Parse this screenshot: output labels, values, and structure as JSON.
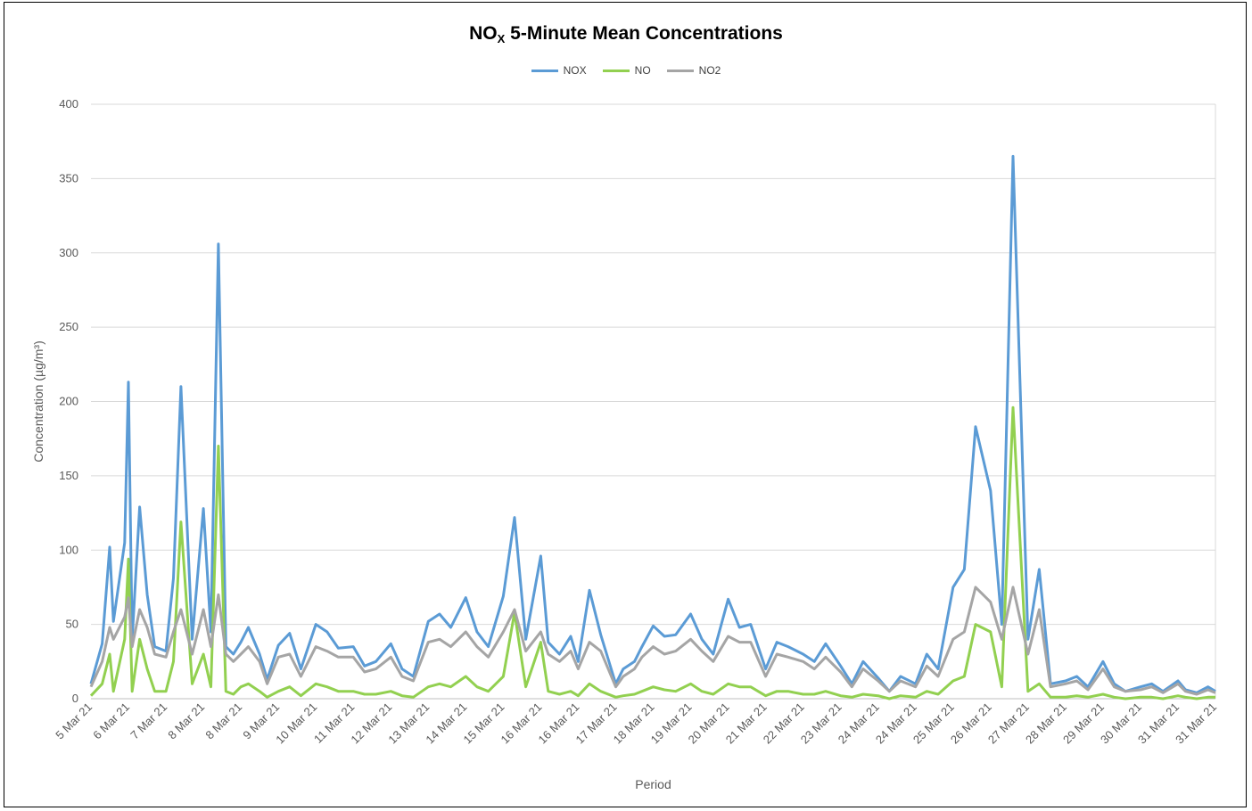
{
  "chart_data": {
    "type": "line",
    "title_main": "NO",
    "title_sub": "X",
    "title_rest": " 5-Minute Mean Concentrations",
    "xlabel": "Period",
    "ylabel": "Concentration (µg/m³)",
    "ylim": [
      0,
      400
    ],
    "yticks": [
      0,
      50,
      100,
      150,
      200,
      250,
      300,
      350,
      400
    ],
    "grid": true,
    "legend_position": "top-center",
    "x_tick_labels": [
      "5 Mar 21",
      "6 Mar 21",
      "7 Mar 21",
      "8 Mar 21",
      "8 Mar 21",
      "9 Mar 21",
      "10 Mar 21",
      "11 Mar 21",
      "12 Mar 21",
      "13 Mar 21",
      "14 Mar 21",
      "15 Mar 21",
      "16 Mar 21",
      "16 Mar 21",
      "17 Mar 21",
      "18 Mar 21",
      "19 Mar 21",
      "20 Mar 21",
      "21 Mar 21",
      "22 Mar 21",
      "23 Mar 21",
      "24 Mar 21",
      "24 Mar 21",
      "25 Mar 21",
      "26 Mar 21",
      "27 Mar 21",
      "28 Mar 21",
      "29 Mar 21",
      "30 Mar 21",
      "31 Mar 21",
      "31 Mar 21"
    ],
    "x": [
      0,
      0.3,
      0.5,
      0.6,
      0.9,
      1.0,
      1.1,
      1.3,
      1.5,
      1.7,
      2.0,
      2.2,
      2.4,
      2.7,
      3.0,
      3.2,
      3.4,
      3.6,
      3.8,
      4.0,
      4.2,
      4.5,
      4.7,
      5.0,
      5.3,
      5.6,
      6.0,
      6.3,
      6.6,
      7.0,
      7.3,
      7.6,
      8.0,
      8.3,
      8.6,
      9.0,
      9.3,
      9.6,
      10.0,
      10.3,
      10.6,
      11.0,
      11.3,
      11.6,
      12.0,
      12.2,
      12.5,
      12.8,
      13.0,
      13.3,
      13.6,
      14.0,
      14.2,
      14.5,
      14.7,
      15.0,
      15.3,
      15.6,
      16.0,
      16.3,
      16.6,
      17.0,
      17.3,
      17.6,
      18.0,
      18.3,
      18.6,
      19.0,
      19.3,
      19.6,
      20.0,
      20.3,
      20.6,
      21.0,
      21.3,
      21.6,
      22.0,
      22.3,
      22.6,
      23.0,
      23.3,
      23.6,
      24.0,
      24.3,
      24.6,
      25.0,
      25.3,
      25.6,
      26.0,
      26.3,
      26.6,
      27.0,
      27.3,
      27.6,
      28.0,
      28.3,
      28.6,
      29.0,
      29.2,
      29.5,
      29.8,
      30.0
    ],
    "series": [
      {
        "name": "NOX",
        "color": "#5b9bd5",
        "values": [
          10,
          37,
          102,
          52,
          105,
          213,
          40,
          129,
          70,
          35,
          32,
          81,
          210,
          40,
          128,
          45,
          306,
          35,
          30,
          38,
          48,
          30,
          13,
          36,
          44,
          20,
          50,
          45,
          34,
          35,
          22,
          25,
          37,
          20,
          15,
          52,
          57,
          48,
          68,
          45,
          35,
          69,
          122,
          40,
          96,
          38,
          30,
          42,
          25,
          73,
          43,
          10,
          20,
          25,
          35,
          49,
          42,
          43,
          57,
          40,
          30,
          67,
          48,
          50,
          20,
          38,
          35,
          30,
          25,
          37,
          22,
          10,
          25,
          14,
          5,
          15,
          10,
          30,
          20,
          75,
          87,
          183,
          140,
          50,
          365,
          40,
          87,
          10,
          12,
          15,
          8,
          25,
          10,
          5,
          8,
          10,
          5,
          12,
          6,
          4,
          8,
          5
        ]
      },
      {
        "name": "NO",
        "color": "#92d050",
        "values": [
          2,
          10,
          30,
          5,
          40,
          94,
          5,
          40,
          20,
          5,
          5,
          25,
          119,
          10,
          30,
          8,
          170,
          5,
          3,
          8,
          10,
          5,
          1,
          5,
          8,
          2,
          10,
          8,
          5,
          5,
          3,
          3,
          5,
          2,
          1,
          8,
          10,
          8,
          15,
          8,
          5,
          15,
          58,
          8,
          38,
          5,
          3,
          5,
          2,
          10,
          5,
          1,
          2,
          3,
          5,
          8,
          6,
          5,
          10,
          5,
          3,
          10,
          8,
          8,
          2,
          5,
          5,
          3,
          3,
          5,
          2,
          1,
          3,
          2,
          0,
          2,
          1,
          5,
          3,
          12,
          15,
          50,
          45,
          8,
          196,
          5,
          10,
          1,
          1,
          2,
          1,
          3,
          1,
          0,
          1,
          1,
          0,
          2,
          1,
          0,
          1,
          1
        ]
      },
      {
        "name": "NO2",
        "color": "#a5a5a5",
        "values": [
          8,
          25,
          48,
          40,
          55,
          68,
          35,
          60,
          48,
          30,
          28,
          45,
          60,
          30,
          60,
          35,
          70,
          30,
          25,
          30,
          35,
          25,
          10,
          28,
          30,
          15,
          35,
          32,
          28,
          28,
          18,
          20,
          28,
          15,
          12,
          38,
          40,
          35,
          45,
          35,
          28,
          45,
          60,
          32,
          45,
          30,
          25,
          32,
          20,
          38,
          32,
          8,
          15,
          20,
          28,
          35,
          30,
          32,
          40,
          32,
          25,
          42,
          38,
          38,
          15,
          30,
          28,
          25,
          20,
          28,
          18,
          8,
          20,
          12,
          5,
          12,
          8,
          22,
          15,
          40,
          45,
          75,
          65,
          40,
          75,
          30,
          60,
          8,
          10,
          12,
          6,
          20,
          8,
          5,
          6,
          8,
          4,
          10,
          5,
          3,
          6,
          4
        ]
      }
    ]
  }
}
